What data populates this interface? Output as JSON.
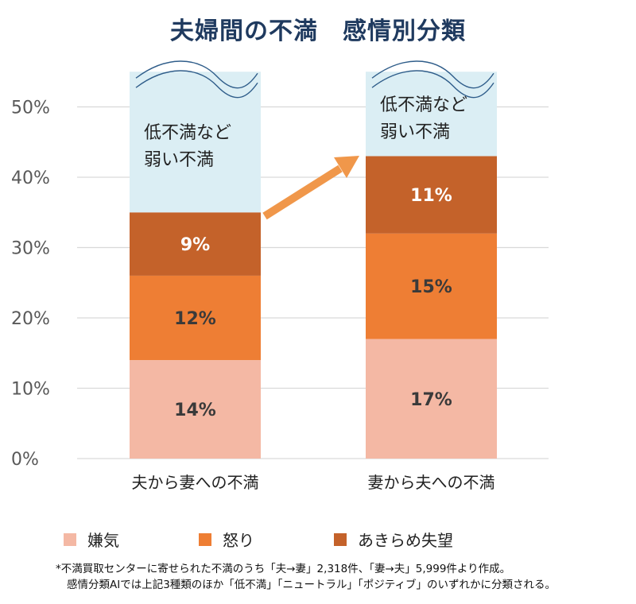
{
  "chart_data": {
    "type": "bar",
    "stacked": true,
    "title": "夫婦間の不満　感情別分類",
    "categories": [
      "夫から妻への不満",
      "妻から夫への不満"
    ],
    "series": [
      {
        "name": "嫌気",
        "values": [
          14,
          17
        ],
        "labels": [
          "14%",
          "17%"
        ],
        "color": "#f4b8a4",
        "label_color": "#3a3a3a"
      },
      {
        "name": "怒り",
        "values": [
          12,
          15
        ],
        "labels": [
          "12%",
          "15%"
        ],
        "color": "#ee7e34",
        "label_color": "#3a3a3a"
      },
      {
        "name": "あきらめ失望",
        "values": [
          9,
          11
        ],
        "labels": [
          "9%",
          "11%"
        ],
        "color": "#c4622a",
        "label_color": "#ffffff"
      }
    ],
    "other_segment": {
      "label_lines": [
        "低不満など",
        "弱い不満"
      ],
      "values": [
        20,
        12
      ],
      "color": "#dbeef4"
    },
    "yaxis": {
      "ticks": [
        0,
        10,
        20,
        30,
        40,
        50
      ],
      "tick_labels": [
        "0%",
        "10%",
        "20%",
        "30%",
        "40%",
        "50%"
      ],
      "ylim": [
        0,
        55
      ]
    },
    "grid": true,
    "legend_position": "bottom",
    "annotation": "arrow from first bar top segment to second bar top segment"
  },
  "footnote": {
    "line1": "*不満買取センターに寄せられた不満のうち「夫→妻」2,318件、「妻→夫」5,999件より作成。",
    "line2": "感情分類AIでは上記3種類のほか「低不満」「ニュートラル」「ポジティブ」のいずれかに分類される。"
  },
  "colors": {
    "title": "#1f3a5f",
    "grid": "#d9d9d9",
    "axis_text": "#595959",
    "arrow": "#f0974a",
    "wave": "#2f5d8a"
  }
}
